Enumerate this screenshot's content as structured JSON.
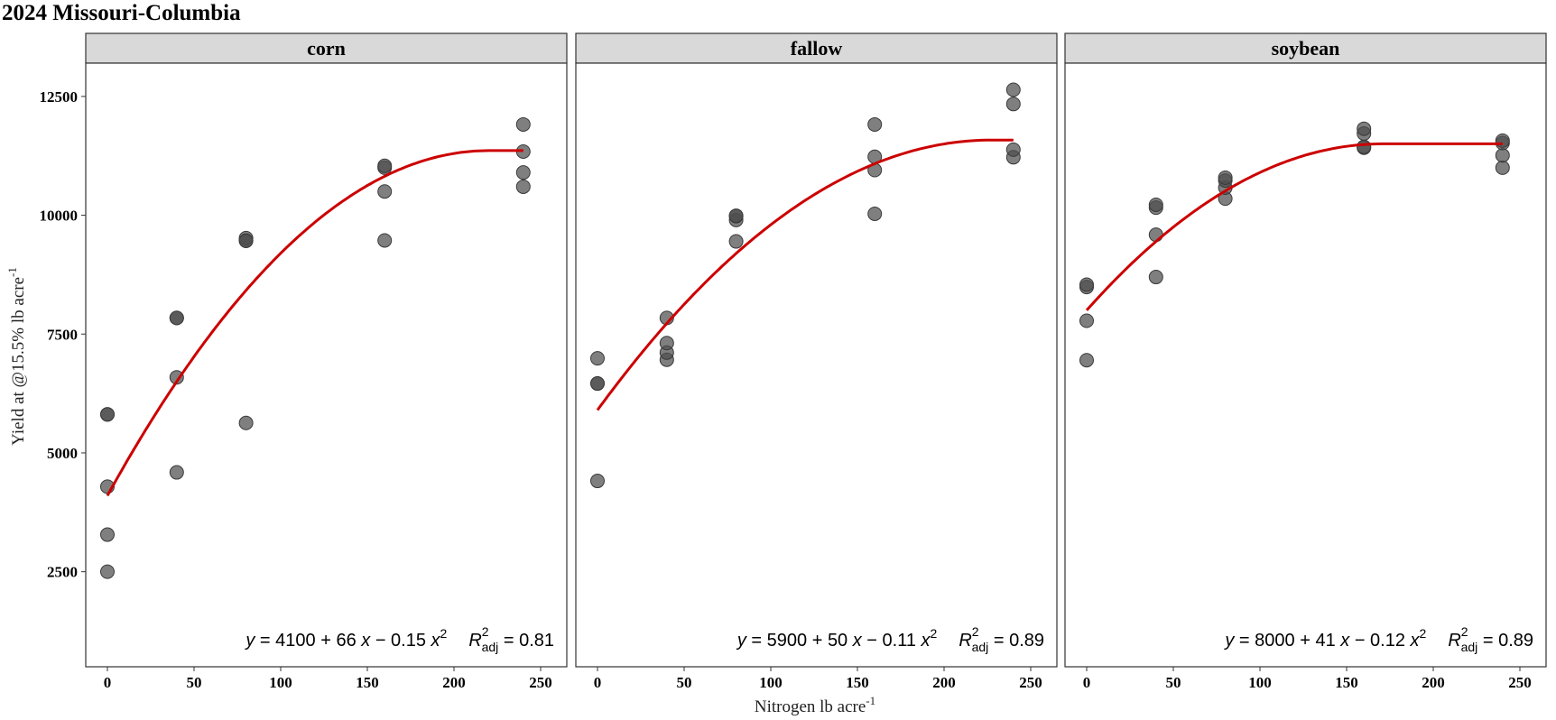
{
  "title": "2024 Missouri-Columbia",
  "colors": {
    "point": "#4d4d4d",
    "curve": "#cc0000",
    "strip_bg": "#d9d9d9",
    "panel_border": "#333333"
  },
  "chart_data": {
    "type": "scatter",
    "title": "2024 Missouri-Columbia",
    "xlabel": {
      "main": "Nitrogen lb acre",
      "sup": "-1"
    },
    "ylabel": {
      "main": "Yield at @15.5% lb acre",
      "sup": "-1"
    },
    "xlim": [
      -12,
      252
    ],
    "ylim": [
      500,
      13200
    ],
    "xticks": [
      0,
      50,
      100,
      150,
      200,
      250
    ],
    "yticks": [
      2500,
      5000,
      7500,
      10000,
      12500
    ],
    "grid": false,
    "facets": [
      {
        "name": "corn",
        "points": [
          [
            0,
            2500
          ],
          [
            0,
            3280
          ],
          [
            0,
            4290
          ],
          [
            0,
            5810
          ],
          [
            0,
            5810
          ],
          [
            40,
            4590
          ],
          [
            40,
            6590
          ],
          [
            40,
            7840
          ],
          [
            40,
            7840
          ],
          [
            80,
            5630
          ],
          [
            80,
            9470
          ],
          [
            80,
            9520
          ],
          [
            80,
            9460
          ],
          [
            160,
            9470
          ],
          [
            160,
            10500
          ],
          [
            160,
            11000
          ],
          [
            160,
            11040
          ],
          [
            240,
            10600
          ],
          [
            240,
            10900
          ],
          [
            240,
            11340
          ],
          [
            240,
            11910
          ]
        ],
        "fit": {
          "a": 4100,
          "b": 66,
          "c": 0.15,
          "plateau_x": 220
        },
        "equation": {
          "lhs": "y",
          "a": "4100",
          "b": "66",
          "c": "0.15",
          "r2": "0.81"
        }
      },
      {
        "name": "fallow",
        "points": [
          [
            0,
            4410
          ],
          [
            0,
            6460
          ],
          [
            0,
            6460
          ],
          [
            0,
            6990
          ],
          [
            40,
            6960
          ],
          [
            40,
            7110
          ],
          [
            40,
            7310
          ],
          [
            40,
            7840
          ],
          [
            80,
            9450
          ],
          [
            80,
            9900
          ],
          [
            80,
            9980
          ],
          [
            80,
            9990
          ],
          [
            160,
            10030
          ],
          [
            160,
            10950
          ],
          [
            160,
            11230
          ],
          [
            160,
            11910
          ],
          [
            240,
            11220
          ],
          [
            240,
            11380
          ],
          [
            240,
            12340
          ],
          [
            240,
            12640
          ]
        ],
        "fit": {
          "a": 5900,
          "b": 50,
          "c": 0.11,
          "plateau_x": 227
        },
        "equation": {
          "lhs": "y",
          "a": "5900",
          "b": "50",
          "c": "0.11",
          "r2": "0.89"
        }
      },
      {
        "name": "soybean",
        "points": [
          [
            0,
            6950
          ],
          [
            0,
            7780
          ],
          [
            0,
            8490
          ],
          [
            0,
            8540
          ],
          [
            40,
            8700
          ],
          [
            40,
            9590
          ],
          [
            40,
            10160
          ],
          [
            40,
            10220
          ],
          [
            80,
            10350
          ],
          [
            80,
            10580
          ],
          [
            80,
            10730
          ],
          [
            80,
            10790
          ],
          [
            160,
            11420
          ],
          [
            160,
            11440
          ],
          [
            160,
            11720
          ],
          [
            160,
            11820
          ],
          [
            240,
            11000
          ],
          [
            240,
            11260
          ],
          [
            240,
            11520
          ],
          [
            240,
            11570
          ]
        ],
        "fit": {
          "a": 8000,
          "b": 41,
          "c": 0.12,
          "plateau_x": 171
        },
        "equation": {
          "lhs": "y",
          "a": "8000",
          "b": "41",
          "c": "0.12",
          "r2": "0.89"
        }
      }
    ]
  }
}
